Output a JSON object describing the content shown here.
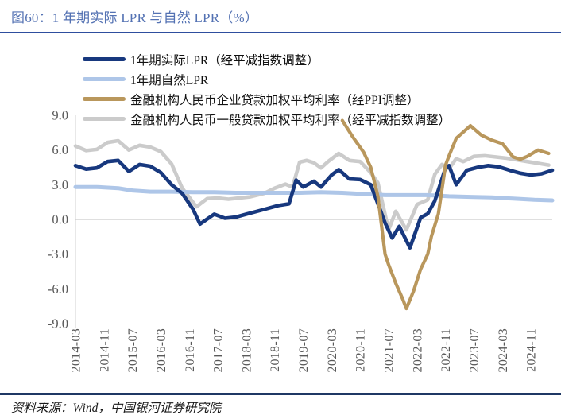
{
  "title": "图60：1 年期实际 LPR 与自然 LPR（%）",
  "source": "资料来源：Wind，中国银河证券研究院",
  "colors": {
    "title_text": "#5472B3",
    "rule_top": "#2E4E9E",
    "rule_bottom": "#1F3864",
    "axis_text": "#595959",
    "axis_line": "#D9D9D9",
    "zero_line": "#CCCCCC",
    "real_lpr": "#17387E",
    "natural_lpr": "#AEC6E8",
    "corporate_loan": "#B9975C",
    "general_loan": "#CBCBCB"
  },
  "chart_data": {
    "type": "line",
    "title": "",
    "xlabel": "",
    "ylabel": "",
    "grid": "zero-line-only",
    "legend_position": "top-left",
    "ylim": [
      -9.0,
      9.0
    ],
    "y_tick_labels": [
      "9.0",
      "6.0",
      "3.0",
      "0.0",
      "-3.0",
      "-6.0",
      "-9.0"
    ],
    "x_domain": [
      "2014-03",
      "2025-05"
    ],
    "x_tick_labels": [
      "2014-03",
      "2014-11",
      "2015-07",
      "2016-03",
      "2016-11",
      "2017-07",
      "2018-03",
      "2018-11",
      "2019-07",
      "2020-03",
      "2020-11",
      "2021-07",
      "2022-03",
      "2022-11",
      "2023-07",
      "2024-03",
      "2024-11"
    ],
    "series": [
      {
        "name": "1年期实际LPR（经平减指数调整）",
        "color": "#17387E",
        "stroke_width": 4.6,
        "z": 3,
        "points": [
          [
            "2014-03",
            4.65
          ],
          [
            "2014-06",
            4.35
          ],
          [
            "2014-09",
            4.45
          ],
          [
            "2014-12",
            5.0
          ],
          [
            "2015-03",
            5.1
          ],
          [
            "2015-06",
            4.15
          ],
          [
            "2015-09",
            4.75
          ],
          [
            "2015-12",
            4.6
          ],
          [
            "2016-03",
            4.05
          ],
          [
            "2016-06",
            3.0
          ],
          [
            "2016-09",
            2.25
          ],
          [
            "2016-12",
            0.9
          ],
          [
            "2017-02",
            -0.4
          ],
          [
            "2017-06",
            0.45
          ],
          [
            "2017-09",
            0.1
          ],
          [
            "2017-12",
            0.2
          ],
          [
            "2018-03",
            0.45
          ],
          [
            "2018-06",
            0.7
          ],
          [
            "2018-09",
            0.95
          ],
          [
            "2018-12",
            1.2
          ],
          [
            "2019-03",
            1.35
          ],
          [
            "2019-05",
            3.4
          ],
          [
            "2019-07",
            2.8
          ],
          [
            "2019-10",
            3.3
          ],
          [
            "2019-12",
            2.8
          ],
          [
            "2020-03",
            3.85
          ],
          [
            "2020-05",
            4.3
          ],
          [
            "2020-08",
            3.5
          ],
          [
            "2020-11",
            3.45
          ],
          [
            "2021-02",
            3.0
          ],
          [
            "2021-06",
            -0.3
          ],
          [
            "2021-08",
            -1.6
          ],
          [
            "2021-10",
            -0.6
          ],
          [
            "2022-01",
            -2.45
          ],
          [
            "2022-04",
            0.15
          ],
          [
            "2022-06",
            0.5
          ],
          [
            "2022-08",
            1.6
          ],
          [
            "2022-11",
            4.45
          ],
          [
            "2022-12",
            4.65
          ],
          [
            "2023-02",
            3.0
          ],
          [
            "2023-05",
            4.25
          ],
          [
            "2023-08",
            4.5
          ],
          [
            "2023-11",
            4.65
          ],
          [
            "2024-02",
            4.55
          ],
          [
            "2024-05",
            4.25
          ],
          [
            "2024-08",
            4.0
          ],
          [
            "2024-11",
            3.85
          ],
          [
            "2025-02",
            3.95
          ],
          [
            "2025-05",
            4.25
          ]
        ]
      },
      {
        "name": "1年期自然LPR",
        "color": "#AEC6E8",
        "stroke_width": 5,
        "z": 2,
        "points": [
          [
            "2014-03",
            2.8
          ],
          [
            "2014-09",
            2.8
          ],
          [
            "2015-03",
            2.7
          ],
          [
            "2015-07",
            2.5
          ],
          [
            "2015-12",
            2.4
          ],
          [
            "2016-06",
            2.4
          ],
          [
            "2016-12",
            2.35
          ],
          [
            "2017-06",
            2.35
          ],
          [
            "2017-12",
            2.3
          ],
          [
            "2018-06",
            2.3
          ],
          [
            "2018-12",
            2.3
          ],
          [
            "2019-06",
            2.3
          ],
          [
            "2019-12",
            2.35
          ],
          [
            "2020-06",
            2.3
          ],
          [
            "2020-12",
            2.2
          ],
          [
            "2021-06",
            2.1
          ],
          [
            "2021-12",
            2.1
          ],
          [
            "2022-06",
            2.1
          ],
          [
            "2022-12",
            2.0
          ],
          [
            "2023-06",
            1.95
          ],
          [
            "2023-12",
            1.9
          ],
          [
            "2024-06",
            1.8
          ],
          [
            "2024-12",
            1.7
          ],
          [
            "2025-05",
            1.65
          ]
        ]
      },
      {
        "name": "金融机构人民币企业贷款加权平均利率（经PPI调整）",
        "color": "#B9975C",
        "stroke_width": 4.2,
        "z": 4,
        "points": [
          [
            "2020-06",
            8.55
          ],
          [
            "2020-09",
            7.1
          ],
          [
            "2020-12",
            5.8
          ],
          [
            "2021-02",
            4.5
          ],
          [
            "2021-04",
            2.0
          ],
          [
            "2021-06",
            -3.0
          ],
          [
            "2021-07",
            -3.9
          ],
          [
            "2021-09",
            -5.5
          ],
          [
            "2021-11",
            -6.9
          ],
          [
            "2021-12",
            -7.7
          ],
          [
            "2022-02",
            -6.2
          ],
          [
            "2022-04",
            -4.3
          ],
          [
            "2022-06",
            -3.0
          ],
          [
            "2022-07",
            -1.5
          ],
          [
            "2022-09",
            0.5
          ],
          [
            "2022-11",
            4.7
          ],
          [
            "2022-12",
            5.5
          ],
          [
            "2023-02",
            7.0
          ],
          [
            "2023-06",
            8.1
          ],
          [
            "2023-09",
            7.3
          ],
          [
            "2023-12",
            6.85
          ],
          [
            "2024-03",
            6.55
          ],
          [
            "2024-06",
            5.4
          ],
          [
            "2024-08",
            5.2
          ],
          [
            "2024-10",
            5.45
          ],
          [
            "2025-01",
            6.0
          ],
          [
            "2025-04",
            5.7
          ]
        ]
      },
      {
        "name": "金融机构人民币一般贷款加权平均利率（经平减指数调整）",
        "color": "#CBCBCB",
        "stroke_width": 4.6,
        "z": 1,
        "points": [
          [
            "2014-03",
            6.35
          ],
          [
            "2014-06",
            5.95
          ],
          [
            "2014-09",
            6.05
          ],
          [
            "2014-12",
            6.65
          ],
          [
            "2015-03",
            6.8
          ],
          [
            "2015-06",
            6.0
          ],
          [
            "2015-09",
            6.4
          ],
          [
            "2015-12",
            6.25
          ],
          [
            "2016-03",
            5.85
          ],
          [
            "2016-06",
            4.8
          ],
          [
            "2016-09",
            2.7
          ],
          [
            "2017-01",
            1.1
          ],
          [
            "2017-04",
            1.8
          ],
          [
            "2017-07",
            1.85
          ],
          [
            "2017-10",
            1.75
          ],
          [
            "2018-01",
            1.85
          ],
          [
            "2018-04",
            1.95
          ],
          [
            "2018-08",
            2.25
          ],
          [
            "2018-11",
            2.7
          ],
          [
            "2019-02",
            3.05
          ],
          [
            "2019-04",
            2.8
          ],
          [
            "2019-06",
            4.95
          ],
          [
            "2019-08",
            5.1
          ],
          [
            "2019-10",
            4.9
          ],
          [
            "2019-12",
            4.45
          ],
          [
            "2020-02",
            5.0
          ],
          [
            "2020-05",
            5.7
          ],
          [
            "2020-08",
            5.1
          ],
          [
            "2020-11",
            5.0
          ],
          [
            "2021-02",
            4.05
          ],
          [
            "2021-04",
            3.15
          ],
          [
            "2021-07",
            -0.9
          ],
          [
            "2021-09",
            0.7
          ],
          [
            "2021-12",
            -0.9
          ],
          [
            "2022-03",
            1.3
          ],
          [
            "2022-06",
            1.7
          ],
          [
            "2022-08",
            3.9
          ],
          [
            "2022-10",
            4.75
          ],
          [
            "2022-12",
            4.4
          ],
          [
            "2023-02",
            5.25
          ],
          [
            "2023-04",
            5.0
          ],
          [
            "2023-07",
            5.45
          ],
          [
            "2023-10",
            5.5
          ],
          [
            "2024-01",
            5.4
          ],
          [
            "2024-04",
            5.3
          ],
          [
            "2024-07",
            5.15
          ],
          [
            "2024-10",
            5.0
          ],
          [
            "2025-01",
            4.85
          ],
          [
            "2025-04",
            4.7
          ]
        ]
      }
    ]
  }
}
